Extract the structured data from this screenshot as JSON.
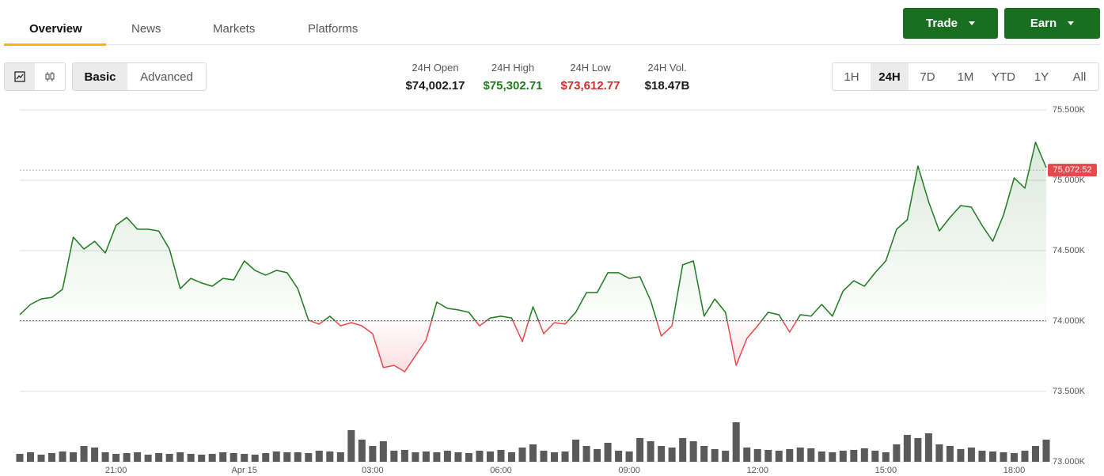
{
  "tabs": [
    "Overview",
    "News",
    "Markets",
    "Platforms"
  ],
  "actions": [
    "Trade",
    "Earn"
  ],
  "view_modes": [
    "Basic",
    "Advanced"
  ],
  "stats": [
    {
      "label": "24H Open",
      "value": "$74,002.17"
    },
    {
      "label": "24H High",
      "value": "$75,302.71"
    },
    {
      "label": "24H Low",
      "value": "$73,612.77"
    },
    {
      "label": "24H Vol.",
      "value": "$18.47B"
    }
  ],
  "ranges": [
    "1H",
    "24H",
    "7D",
    "1M",
    "YTD",
    "1Y",
    "All"
  ],
  "chart_data": {
    "type": "line",
    "categories": [
      null,
      null,
      null,
      null,
      null,
      null,
      null,
      null,
      null,
      "21:00",
      null,
      null,
      null,
      null,
      null,
      null,
      null,
      null,
      null,
      null,
      null,
      "Apr 15",
      null,
      null,
      null,
      null,
      null,
      null,
      null,
      null,
      null,
      null,
      null,
      "03:00",
      null,
      null,
      null,
      null,
      null,
      null,
      null,
      null,
      null,
      null,
      null,
      "06:00",
      null,
      null,
      null,
      null,
      null,
      null,
      null,
      null,
      null,
      null,
      null,
      "09:00",
      null,
      null,
      null,
      null,
      null,
      null,
      null,
      null,
      null,
      null,
      null,
      "12:00",
      null,
      null,
      null,
      null,
      null,
      null,
      null,
      null,
      null,
      null,
      null,
      "15:00",
      null,
      null,
      null,
      null,
      null,
      null,
      null,
      null,
      null,
      null,
      null,
      "18:00",
      null,
      null,
      null
    ],
    "values": [
      74045,
      74118,
      74157,
      74168,
      74225,
      74596,
      74511,
      74567,
      74483,
      74680,
      74736,
      74652,
      74652,
      74640,
      74511,
      74230,
      74303,
      74270,
      74247,
      74303,
      74292,
      74427,
      74360,
      74326,
      74360,
      74343,
      74230,
      74006,
      73978,
      74034,
      73966,
      73989,
      73966,
      73910,
      73669,
      73685,
      73640,
      73753,
      73865,
      74135,
      74090,
      74079,
      74062,
      73966,
      74022,
      74034,
      74022,
      73854,
      74101,
      73910,
      73989,
      73978,
      74062,
      74202,
      74202,
      74343,
      74343,
      74303,
      74315,
      74146,
      73893,
      73966,
      74399,
      74427,
      74034,
      74157,
      74062,
      73685,
      73876,
      73966,
      74062,
      74045,
      73921,
      74045,
      74034,
      74118,
      74034,
      74213,
      74286,
      74247,
      74343,
      74427,
      74652,
      74719,
      75101,
      74848,
      74640,
      74736,
      74820,
      74809,
      74680,
      74567,
      74753,
      75017,
      74944,
      75270,
      75090
    ],
    "up_color": "#1f7a1f",
    "down_color": "#e5484d",
    "reference_line": 74002.17,
    "last_price": {
      "value": 75072.52,
      "label": "75,072.52"
    },
    "ylim": [
      73000,
      75600
    ],
    "yticks": [
      {
        "value": 73000,
        "label": "73.000K"
      },
      {
        "value": 73500,
        "label": "73.500K"
      },
      {
        "value": 74000,
        "label": "74.000K"
      },
      {
        "value": 74500,
        "label": "74.500K"
      },
      {
        "value": 75000,
        "label": "75.000K"
      },
      {
        "value": 75500,
        "label": "75.500K"
      }
    ],
    "grid": true,
    "volume": {
      "color": "#5a5a5a",
      "axis": "y2",
      "values": [
        10,
        12,
        9,
        11,
        13,
        12,
        20,
        18,
        12,
        10,
        11,
        12,
        9,
        11,
        10,
        12,
        10,
        9,
        10,
        12,
        11,
        10,
        9,
        11,
        13,
        12,
        12,
        11,
        14,
        13,
        12,
        40,
        28,
        20,
        26,
        14,
        15,
        12,
        13,
        12,
        14,
        12,
        11,
        14,
        13,
        15,
        12,
        18,
        22,
        14,
        12,
        13,
        28,
        20,
        16,
        24,
        14,
        13,
        30,
        26,
        20,
        18,
        30,
        26,
        20,
        16,
        14,
        50,
        18,
        16,
        15,
        14,
        16,
        18,
        17,
        13,
        12,
        14,
        15,
        17,
        14,
        12,
        22,
        34,
        30,
        36,
        22,
        20,
        16,
        18,
        14,
        13,
        12,
        11,
        14,
        20,
        28
      ]
    },
    "y2lim": [
      0,
      90
    ]
  }
}
